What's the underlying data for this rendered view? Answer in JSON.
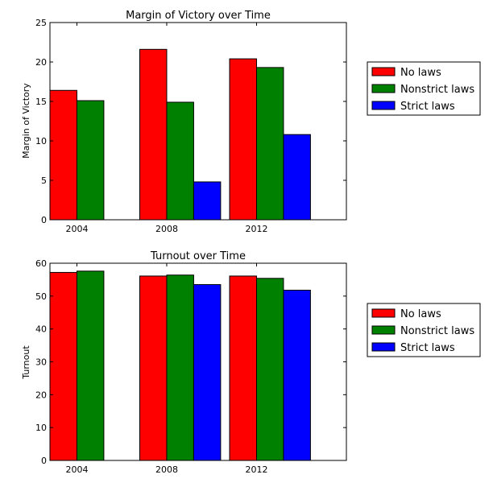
{
  "chart_data": [
    {
      "type": "bar",
      "title": "Margin of Victory over Time",
      "xlabel": "",
      "ylabel": "Margin of Victory",
      "categories": [
        "2004",
        "2008",
        "2012"
      ],
      "ylim": [
        0,
        25
      ],
      "yticks": [
        "0",
        "5",
        "10",
        "15",
        "20",
        "25"
      ],
      "series": [
        {
          "name": "No laws",
          "color": "#ff0000",
          "values": [
            16.4,
            21.6,
            20.4
          ]
        },
        {
          "name": "Nonstrict laws",
          "color": "#008000",
          "values": [
            15.1,
            14.9,
            19.3
          ]
        },
        {
          "name": "Strict laws",
          "color": "#0000ff",
          "values": [
            null,
            4.8,
            10.8
          ]
        }
      ],
      "legend": "right"
    },
    {
      "type": "bar",
      "title": "Turnout over Time",
      "xlabel": "",
      "ylabel": "Turnout",
      "categories": [
        "2004",
        "2008",
        "2012"
      ],
      "ylim": [
        0,
        60
      ],
      "yticks": [
        "0",
        "10",
        "20",
        "30",
        "40",
        "50",
        "60"
      ],
      "series": [
        {
          "name": "No laws",
          "color": "#ff0000",
          "values": [
            57.2,
            56.1,
            56.1
          ]
        },
        {
          "name": "Nonstrict laws",
          "color": "#008000",
          "values": [
            57.6,
            56.4,
            55.4
          ]
        },
        {
          "name": "Strict laws",
          "color": "#0000ff",
          "values": [
            null,
            53.5,
            51.8
          ]
        }
      ],
      "legend": "right"
    }
  ]
}
